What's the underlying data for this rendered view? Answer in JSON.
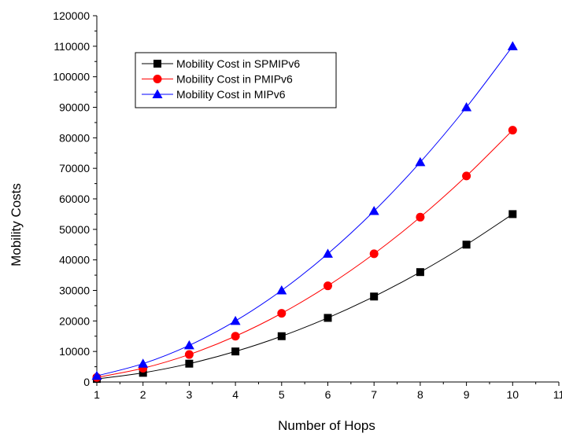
{
  "chart_data": {
    "type": "line",
    "xlabel": "Number of Hops",
    "ylabel": "Mobility Costs",
    "xlim": [
      1,
      11
    ],
    "ylim": [
      0,
      120000
    ],
    "x_ticks": [
      "1",
      "2",
      "3",
      "4",
      "5",
      "6",
      "7",
      "8",
      "9",
      "10",
      "11"
    ],
    "y_ticks": [
      "0",
      "10000",
      "20000",
      "30000",
      "40000",
      "50000",
      "60000",
      "70000",
      "80000",
      "90000",
      "100000",
      "110000",
      "120000"
    ],
    "grid": false,
    "legend_position": "top-left",
    "x": [
      1,
      2,
      3,
      4,
      5,
      6,
      7,
      8,
      9,
      10
    ],
    "series": [
      {
        "name": "Mobility Cost in SPMIPv6",
        "color": "#000000",
        "marker": "square",
        "values": [
          1000,
          3000,
          6000,
          10000,
          15000,
          21000,
          28000,
          36000,
          45000,
          55000
        ]
      },
      {
        "name": "Mobility Cost in PMIPv6",
        "color": "#ff0000",
        "marker": "circle",
        "values": [
          1500,
          4500,
          9000,
          15000,
          22500,
          31500,
          42000,
          54000,
          67500,
          82500
        ]
      },
      {
        "name": "Mobility Cost in MIPv6",
        "color": "#0000ff",
        "marker": "triangle",
        "values": [
          2000,
          6000,
          12000,
          20000,
          30000,
          42000,
          56000,
          72000,
          90000,
          110000
        ]
      }
    ]
  }
}
